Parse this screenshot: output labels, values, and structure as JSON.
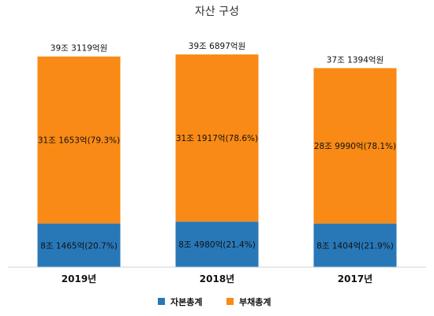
{
  "chart_data": {
    "type": "bar",
    "stacked": true,
    "title": "자산 구성",
    "categories": [
      "2019년",
      "2018년",
      "2017년"
    ],
    "totals": [
      39.3119,
      39.6897,
      37.1394
    ],
    "total_labels": [
      "39조 3119억원",
      "39조 6897억원",
      "37조 1394억원"
    ],
    "series": [
      {
        "name": "자본총계",
        "color": "#2878b8",
        "values": [
          8.1465,
          8.498,
          8.1404
        ],
        "labels": [
          "8조 1465억(20.7%)",
          "8조 4980억(21.4%)",
          "8조 1404억(21.9%)"
        ]
      },
      {
        "name": "부채총계",
        "color": "#f98a15",
        "values": [
          31.1653,
          31.1917,
          28.999
        ],
        "labels": [
          "31조 1653억(79.3%)",
          "31조 1917억(78.6%)",
          "28조 9990억(78.1%)"
        ]
      }
    ],
    "ylim": [
      0,
      40
    ],
    "grid": false,
    "legend_position": "bottom"
  }
}
